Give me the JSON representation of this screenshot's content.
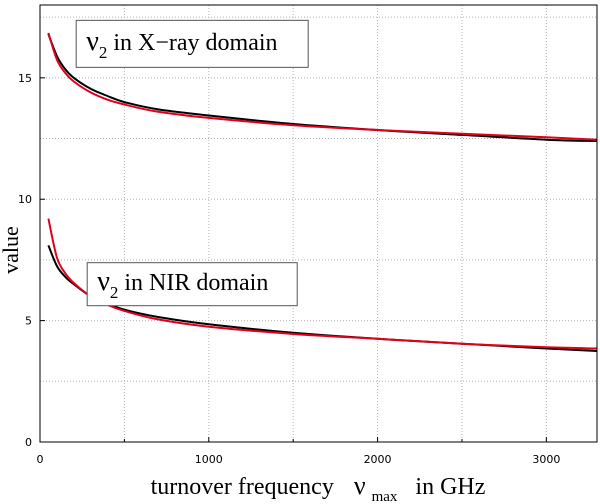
{
  "chart_data": {
    "type": "line",
    "title": "",
    "xlabel": {
      "main": "turnover frequency",
      "symbol": "ν",
      "subscript": "max",
      "suffix": "in  GHz"
    },
    "ylabel": "value",
    "xlim": [
      0,
      3300
    ],
    "ylim": [
      0,
      18
    ],
    "x_ticks": [
      0,
      1000,
      2000,
      3000
    ],
    "y_ticks": [
      0,
      5,
      10,
      15
    ],
    "grid": true,
    "colors": {
      "black": "#000000",
      "red": "#e0001b",
      "grid": "#b4b4b4"
    },
    "annotations": [
      {
        "symbol": "ν",
        "subscript": "2",
        "text": "in X−ray domain",
        "anchor_x": 250,
        "anchor_y": 16.4
      },
      {
        "symbol": "ν",
        "subscript": "2",
        "text": "in NIR domain",
        "anchor_x": 250,
        "anchor_y": 6.5
      }
    ],
    "series": [
      {
        "color": "#000000",
        "x": [
          50,
          100,
          150,
          200,
          300,
          400,
          500,
          700,
          1000,
          1500,
          2000,
          2500,
          3000,
          3300
        ],
        "y": [
          16.8,
          15.9,
          15.35,
          15.0,
          14.55,
          14.25,
          14.0,
          13.7,
          13.45,
          13.1,
          12.85,
          12.65,
          12.45,
          12.4
        ]
      },
      {
        "color": "#e0001b",
        "x": [
          50,
          100,
          150,
          200,
          300,
          400,
          500,
          700,
          1000,
          1500,
          2000,
          2500,
          3000,
          3300
        ],
        "y": [
          16.85,
          15.75,
          15.2,
          14.85,
          14.4,
          14.1,
          13.9,
          13.6,
          13.35,
          13.05,
          12.85,
          12.7,
          12.55,
          12.45
        ]
      },
      {
        "color": "#000000",
        "x": [
          50,
          100,
          150,
          200,
          300,
          400,
          500,
          700,
          1000,
          1500,
          2000,
          2500,
          3000,
          3300
        ],
        "y": [
          8.1,
          7.25,
          6.8,
          6.5,
          6.0,
          5.7,
          5.45,
          5.15,
          4.85,
          4.5,
          4.25,
          4.05,
          3.85,
          3.75
        ]
      },
      {
        "color": "#e0001b",
        "x": [
          50,
          100,
          150,
          200,
          300,
          400,
          500,
          700,
          1000,
          1500,
          2000,
          2500,
          3000,
          3300
        ],
        "y": [
          9.2,
          7.6,
          6.95,
          6.55,
          6.0,
          5.65,
          5.4,
          5.05,
          4.75,
          4.45,
          4.25,
          4.05,
          3.9,
          3.85
        ]
      }
    ]
  }
}
